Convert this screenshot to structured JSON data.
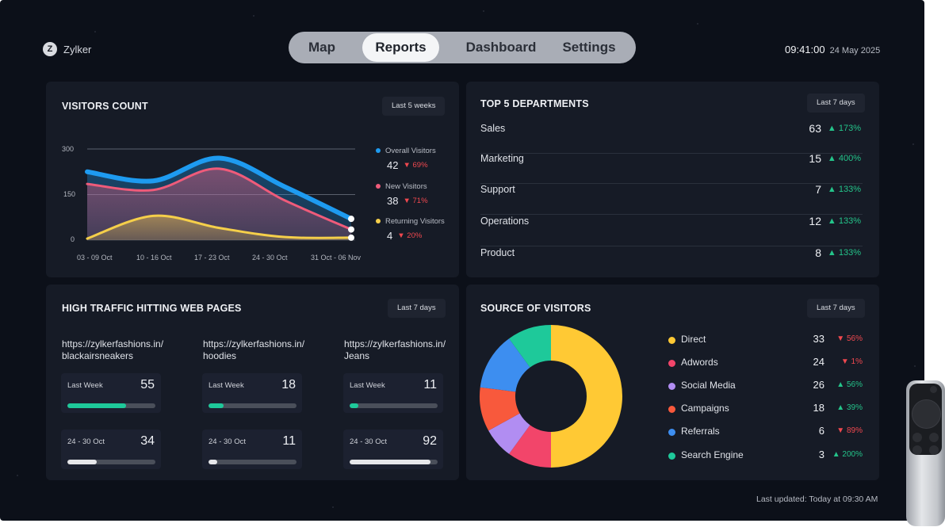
{
  "app": {
    "name": "Zylker",
    "logo_letter": "Z"
  },
  "nav": {
    "tabs": [
      "Map",
      "Reports",
      "Dashboard",
      "Settings"
    ],
    "active": "Reports"
  },
  "clock": {
    "time": "09:41:00",
    "date": "24 May 2025"
  },
  "visitors": {
    "title": "VISITORS COUNT",
    "range": "Last 5 weeks",
    "legend": [
      {
        "name": "Overall Visitors",
        "value": "42",
        "change": "69%",
        "direction": "down",
        "color": "#1e9bf0"
      },
      {
        "name": "New Visitors",
        "value": "38",
        "change": "71%",
        "direction": "down",
        "color": "#ef5b7a"
      },
      {
        "name": "Returning Visitors",
        "value": "4",
        "change": "20%",
        "direction": "down",
        "color": "#f5cf4a"
      }
    ]
  },
  "chart_data": {
    "type": "area",
    "categories": [
      "03 - 09 Oct",
      "10 - 16 Oct",
      "17 - 23 Oct",
      "24 - 30 Oct",
      "31 Oct - 06 Nov"
    ],
    "yticks": [
      "300",
      "150",
      "0"
    ],
    "ylim": [
      0,
      300
    ],
    "grid": true,
    "series": [
      {
        "name": "Overall Visitors",
        "color": "#1e9bf0",
        "values": [
          225,
          195,
          270,
          175,
          70
        ]
      },
      {
        "name": "New Visitors",
        "color": "#ef5b7a",
        "values": [
          185,
          165,
          235,
          130,
          35
        ]
      },
      {
        "name": "Returning Visitors",
        "color": "#f5cf4a",
        "values": [
          5,
          80,
          40,
          10,
          8
        ]
      }
    ],
    "legend_position": "right"
  },
  "departments": {
    "title": "TOP 5 DEPARTMENTS",
    "range": "Last 7 days",
    "rows": [
      {
        "name": "Sales",
        "value": "63",
        "change": "173%"
      },
      {
        "name": "Marketing",
        "value": "15",
        "change": "400%"
      },
      {
        "name": "Support",
        "value": "7",
        "change": "133%"
      },
      {
        "name": "Operations",
        "value": "12",
        "change": "133%"
      },
      {
        "name": "Product",
        "value": "8",
        "change": "133%"
      }
    ]
  },
  "pages": {
    "title": "HIGH TRAFFIC HITTING WEB PAGES",
    "range": "Last 7 days",
    "items": [
      {
        "url": "https://zylkerfashions.in/ blackairsneakers",
        "week_label": "Last Week",
        "week_value": "55",
        "week_level": 0.67,
        "prev_label": "24 - 30 Oct",
        "prev_value": "34",
        "prev_level": 0.33
      },
      {
        "url": "https://zylkerfashions.in/ hoodies",
        "week_label": "Last Week",
        "week_value": "18",
        "week_level": 0.17,
        "prev_label": "24 - 30 Oct",
        "prev_value": "11",
        "prev_level": 0.1
      },
      {
        "url": "https://zylkerfashions.in/ Jeans",
        "week_label": "Last Week",
        "week_value": "11",
        "week_level": 0.1,
        "prev_label": "24 - 30 Oct",
        "prev_value": "92",
        "prev_level": 0.92
      }
    ]
  },
  "sources": {
    "title": "SOURCE OF VISITORS",
    "range": "Last 7 days",
    "rows": [
      {
        "name": "Direct",
        "value": "33",
        "change": "56%",
        "direction": "down",
        "color": "#ffc934"
      },
      {
        "name": "Adwords",
        "value": "24",
        "change": "1%",
        "direction": "down",
        "color": "#f2456a"
      },
      {
        "name": "Social Media",
        "value": "26",
        "change": "56%",
        "direction": "up",
        "color": "#b18df2"
      },
      {
        "name": "Campaigns",
        "value": "18",
        "change": "39%",
        "direction": "up",
        "color": "#f8593c"
      },
      {
        "name": "Referrals",
        "value": "6",
        "change": "89%",
        "direction": "down",
        "color": "#3d8ef0"
      },
      {
        "name": "Search Engine",
        "value": "3",
        "change": "200%",
        "direction": "up",
        "color": "#1ec99a"
      }
    ],
    "donut_values": [
      50,
      10,
      7,
      10,
      13,
      10
    ]
  },
  "footer": {
    "updated": "Last updated: Today at 09:30 AM"
  }
}
